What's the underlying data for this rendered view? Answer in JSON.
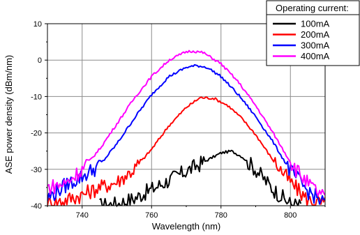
{
  "chart_data": {
    "type": "line",
    "title": "",
    "xlabel": "Wavelength (nm)",
    "ylabel": "ASE power density (dBm/nm)",
    "xlim": [
      730,
      810
    ],
    "ylim": [
      -40,
      10
    ],
    "x_ticks": [
      740,
      760,
      780,
      800
    ],
    "y_ticks": [
      -40,
      -30,
      -20,
      -10,
      0,
      10
    ],
    "grid": true,
    "legend": {
      "title": "Operating current:",
      "placement": "top-right"
    },
    "series": [
      {
        "name": "100mA",
        "color": "#000000",
        "x": [
          745,
          750,
          755,
          760,
          765,
          770,
          775,
          780,
          783,
          786,
          790,
          795,
          800,
          803
        ],
        "y": [
          -40,
          -39.5,
          -38,
          -35.5,
          -33,
          -30.5,
          -28,
          -25.5,
          -25,
          -26.5,
          -30,
          -35.5,
          -39.5,
          -40
        ]
      },
      {
        "name": "200mA",
        "color": "#ff0000",
        "x": [
          730,
          735,
          740,
          745,
          750,
          755,
          760,
          765,
          770,
          774,
          778,
          782,
          786,
          790,
          795,
          800,
          805,
          810
        ],
        "y": [
          -39.5,
          -38.5,
          -37,
          -35,
          -33.5,
          -30,
          -24.5,
          -18,
          -13,
          -10.3,
          -10.5,
          -12.5,
          -16,
          -20.5,
          -27.5,
          -33.5,
          -38.5,
          -39.5
        ]
      },
      {
        "name": "300mA",
        "color": "#0000ff",
        "x": [
          730,
          735,
          740,
          745,
          750,
          755,
          760,
          765,
          770,
          773,
          776,
          780,
          785,
          790,
          795,
          800,
          805,
          810
        ],
        "y": [
          -38,
          -34.5,
          -32,
          -29,
          -23,
          -16,
          -9.5,
          -4.5,
          -2,
          -1.5,
          -2,
          -4.5,
          -9.5,
          -15.5,
          -22.5,
          -30.5,
          -36,
          -39.5
        ]
      },
      {
        "name": "400mA",
        "color": "#ff00ff",
        "x": [
          730,
          735,
          740,
          745,
          750,
          755,
          760,
          765,
          770,
          772,
          775,
          780,
          785,
          790,
          795,
          800,
          805,
          810
        ],
        "y": [
          -35,
          -34,
          -30,
          -24.5,
          -17.5,
          -10.5,
          -4.5,
          0,
          2.3,
          2.5,
          2,
          -1,
          -6,
          -12.5,
          -20,
          -28,
          -34,
          -38
        ]
      }
    ]
  }
}
